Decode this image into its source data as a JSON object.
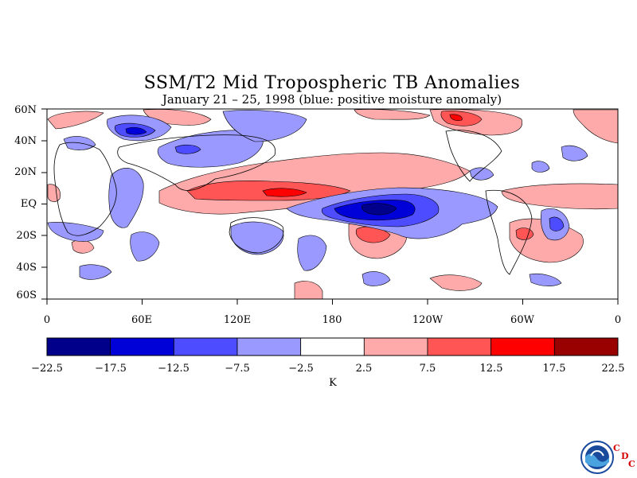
{
  "title": "SSM/T2 Mid Tropospheric TB Anomalies",
  "subtitle": "January 21 – 25, 1998 (blue: positive moisture anomaly)",
  "lat_labels": [
    "60N",
    "40N",
    "20N",
    "EQ",
    "20S",
    "40S",
    "60S"
  ],
  "lon_labels": [
    "0",
    "60E",
    "120E",
    "180",
    "120W",
    "60W",
    "0"
  ],
  "colorbar": {
    "ticks": [
      "−22.5",
      "−17.5",
      "−12.5",
      "−7.5",
      "−2.5",
      "2.5",
      "7.5",
      "12.5",
      "17.5",
      "22.5"
    ],
    "colors": [
      "#00008b",
      "#0000d8",
      "#4d4dff",
      "#9999ff",
      "#ffffff",
      "#ffaaaa",
      "#ff5555",
      "#ff0000",
      "#990000"
    ],
    "unit": "K"
  },
  "logo": {
    "name": "noaa-logo",
    "letters": [
      "C",
      "D",
      "C"
    ]
  },
  "chart_data": {
    "type": "heatmap",
    "map_type": "global contour anomaly map (equirectangular, 0°–360° longitude, 60S–60N)",
    "variable": "SSM/T2 mid tropospheric brightness temperature anomaly",
    "unit": "K",
    "levels": [
      -22.5,
      -17.5,
      -12.5,
      -7.5,
      -2.5,
      2.5,
      7.5,
      12.5,
      17.5,
      22.5
    ],
    "xlim": [
      0,
      360
    ],
    "ylim": [
      -60,
      60
    ],
    "features": [
      {
        "name": "central-pacific-moist-anomaly",
        "lon_range": [
          180,
          250
        ],
        "lat_range": [
          -15,
          2
        ],
        "min_value": -17.5
      },
      {
        "name": "western-pacific-warm-band",
        "lon_range": [
          60,
          220
        ],
        "lat_range": [
          0,
          15
        ],
        "max_value": 12.5
      },
      {
        "name": "south-pacific-warm-patch",
        "lon_range": [
          200,
          225
        ],
        "lat_range": [
          -28,
          -15
        ],
        "max_value": 12.5
      },
      {
        "name": "north-pacific-warm-patch",
        "lon_range": [
          240,
          290
        ],
        "lat_range": [
          45,
          60
        ],
        "max_value": 12.5
      },
      {
        "name": "south-america-moist-patch",
        "lon_range": [
          315,
          330
        ],
        "lat_range": [
          -28,
          -15
        ],
        "min_value": -12.5
      }
    ]
  }
}
